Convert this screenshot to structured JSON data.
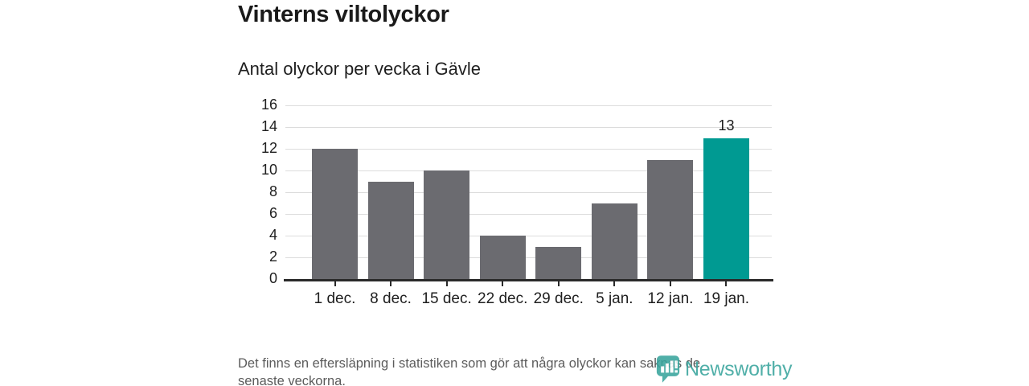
{
  "chart_data": {
    "type": "bar",
    "title": "Vinterns viltolyckor",
    "subtitle": "Antal olyckor per vecka i Gävle",
    "categories": [
      "1 dec.",
      "8 dec.",
      "15 dec.",
      "22 dec.",
      "29 dec.",
      "5 jan.",
      "12 jan.",
      "19 jan."
    ],
    "values": [
      12,
      9,
      10,
      4,
      3,
      7,
      11,
      13
    ],
    "highlighted_index": 7,
    "highlighted_value_label": "13",
    "xlabel": "",
    "ylabel": "",
    "ylim": [
      0,
      16
    ],
    "yticks": [
      0,
      2,
      4,
      6,
      8,
      10,
      12,
      14,
      16
    ],
    "grid": "horizontal",
    "legend": "none",
    "colors": {
      "bar": "#6b6b70",
      "highlight": "#009a92",
      "grid": "#dcdcdc",
      "axis": "#2a2a2a"
    }
  },
  "footnote": {
    "lines": [
      "Det finns en eftersläpning i statistiken som gör att några olyckor kan saknas de",
      "senaste veckorna."
    ]
  },
  "branding": {
    "logo_text": "Newsworthy",
    "logo_color": "#38a49d"
  }
}
